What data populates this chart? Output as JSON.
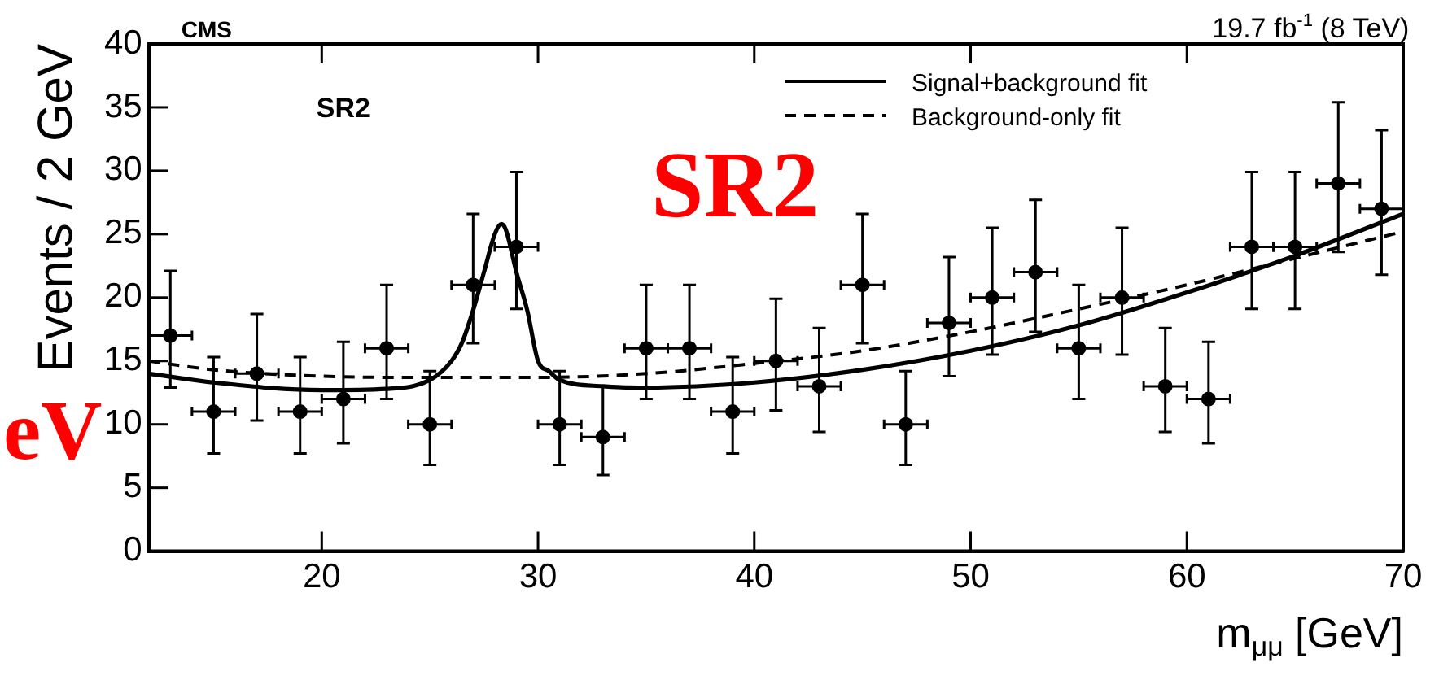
{
  "chart_data": {
    "type": "scatter",
    "xlabel": "m$_{μμ}$ [GeV]",
    "ylabel": "Events / 2 GeV",
    "annotations": [
      "CMS",
      "19.7 fb$^{-1}$ (8 TeV)",
      "SR2",
      "SR2",
      "eV"
    ],
    "xlim": [
      12,
      70
    ],
    "xticks": [
      20,
      30,
      40,
      50,
      60,
      70
    ],
    "ylim": [
      0,
      40
    ],
    "yticks": [
      0,
      5,
      10,
      15,
      20,
      25,
      30,
      35,
      40
    ],
    "grid": false,
    "legend": "top right",
    "series": [
      {
        "type": "scatter",
        "color": "#000000",
        "marker": "circle",
        "x": [
          13,
          15,
          17,
          19,
          21,
          23,
          25,
          27,
          29,
          31,
          33,
          35,
          37,
          39,
          41,
          43,
          45,
          47,
          49,
          51,
          53,
          55,
          57,
          59,
          61,
          63,
          65,
          67,
          69
        ],
        "values": [
          17,
          11,
          14,
          11,
          12,
          16,
          10,
          21,
          24,
          10,
          9,
          16,
          16,
          11,
          15,
          13,
          21,
          10,
          18,
          20,
          22,
          16,
          20,
          13,
          12,
          24,
          24,
          29,
          27
        ],
        "errors": [
          [
            12.9,
            22.1
          ],
          [
            7.7,
            15.3
          ],
          [
            10.3,
            18.7
          ],
          [
            7.7,
            15.3
          ],
          [
            8.5,
            16.5
          ],
          [
            12,
            21
          ],
          [
            6.8,
            14.2
          ],
          [
            16.4,
            26.6
          ],
          [
            19.1,
            29.9
          ],
          [
            6.8,
            14.2
          ],
          [
            6,
            13
          ],
          [
            12,
            21
          ],
          [
            12,
            21
          ],
          [
            7.7,
            15.3
          ],
          [
            11.1,
            19.9
          ],
          [
            9.4,
            17.6
          ],
          [
            16.4,
            26.6
          ],
          [
            6.8,
            14.2
          ],
          [
            13.8,
            23.2
          ],
          [
            15.5,
            25.5
          ],
          [
            17.3,
            27.7
          ],
          [
            12,
            21
          ],
          [
            15.5,
            25.5
          ],
          [
            9.4,
            17.6
          ],
          [
            8.5,
            16.5
          ],
          [
            19.1,
            29.9
          ],
          [
            19.1,
            29.9
          ],
          [
            23.6,
            35.4
          ],
          [
            21.8,
            33.2
          ]
        ],
        "xerrors": [
          1,
          1,
          1,
          1,
          1,
          1,
          1,
          1,
          1,
          1,
          1,
          1,
          1,
          1,
          1,
          1,
          1,
          1,
          1,
          1,
          1,
          1,
          1,
          1,
          1,
          1,
          1,
          1,
          1
        ]
      },
      {
        "type": "line",
        "name": "Signal+background fit",
        "color": "#000000",
        "line_style": "solid",
        "marker": "none",
        "x": [
          12,
          15,
          20,
          23,
          25,
          26,
          26.5,
          27,
          27.5,
          28,
          28.3,
          28.5,
          29,
          29.5,
          30,
          30.5,
          31,
          33,
          35,
          40,
          45,
          50,
          55,
          60,
          65,
          70
        ],
        "values": [
          14,
          13.3,
          12.7,
          12.8,
          13.5,
          15,
          16.5,
          19,
          22,
          25,
          25.8,
          25.4,
          22,
          19,
          15,
          14.2,
          13.5,
          13,
          12.9,
          13.3,
          14.3,
          15.8,
          17.8,
          20.4,
          23.3,
          26.6
        ]
      },
      {
        "type": "line",
        "name": "Background-only fit",
        "color": "#000000",
        "line_style": "dashed",
        "marker": "none",
        "x": [
          12,
          15,
          20,
          25,
          30,
          35,
          40,
          45,
          50,
          55,
          60,
          65,
          70
        ],
        "values": [
          15,
          14.3,
          13.8,
          13.7,
          13.7,
          14,
          14.8,
          15.8,
          17.3,
          19.1,
          21,
          23.1,
          25.2
        ]
      }
    ]
  }
}
